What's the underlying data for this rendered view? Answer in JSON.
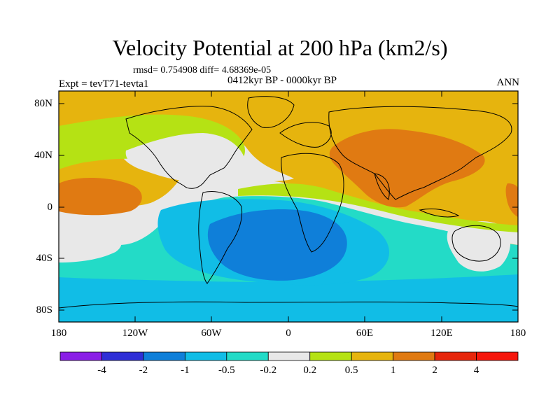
{
  "title": "Velocity Potential at 200 hPa (km2/s)",
  "stats": "rmsd= 0.754908 diff= 4.68369e-05",
  "period": "0412kyr BP - 0000kyr BP",
  "experiment": "Expt = tevT71-tevta1",
  "season": "ANN",
  "lat_labels": [
    "80N",
    "40N",
    "0",
    "40S",
    "80S"
  ],
  "lon_labels": [
    "180",
    "120W",
    "60W",
    "0",
    "60E",
    "120E",
    "180"
  ],
  "colorbar": {
    "labels": [
      "-4",
      "-2",
      "-1",
      "-0.5",
      "-0.2",
      "0.2",
      "0.5",
      "1",
      "2",
      "4"
    ],
    "colors": [
      "#8a1ee6",
      "#2f2fd6",
      "#0f7fd9",
      "#11bde6",
      "#23dbc7",
      "#e8e8e8",
      "#b5e214",
      "#e6b40e",
      "#e07a12",
      "#e6260c",
      "#f5160c"
    ]
  },
  "map_colors": {
    "neg_strong": "#0f7fd9",
    "neg_mid": "#11bde6",
    "neg_weak": "#23dbc7",
    "neutral": "#e8e8e8",
    "pos_weak": "#b5e214",
    "pos_mid": "#e6b40e",
    "pos_strong": "#e07a12"
  }
}
